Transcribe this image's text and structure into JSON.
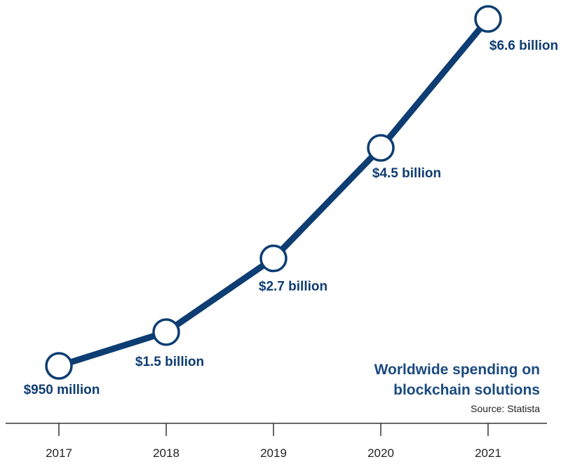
{
  "chart_data": {
    "type": "line",
    "title_lines": [
      "Worldwide spending on",
      "blockchain solutions"
    ],
    "source": "Source: Statista",
    "xlabel": "",
    "ylabel": "",
    "categories": [
      "2017",
      "2018",
      "2019",
      "2020",
      "2021"
    ],
    "unit": "USD billion",
    "ylim": [
      0.95,
      6.6
    ],
    "grid": false,
    "series": [
      {
        "values": [
          0.95,
          1.5,
          2.7,
          4.5,
          6.6
        ],
        "labels": [
          "$950 million",
          "$1.5 billion",
          "$2.7 billion",
          "$4.5 billion",
          "$6.6 billion"
        ]
      }
    ],
    "colors": {
      "line": "#0d3d72",
      "title": "#1a4a80",
      "axis": "#333333"
    }
  }
}
